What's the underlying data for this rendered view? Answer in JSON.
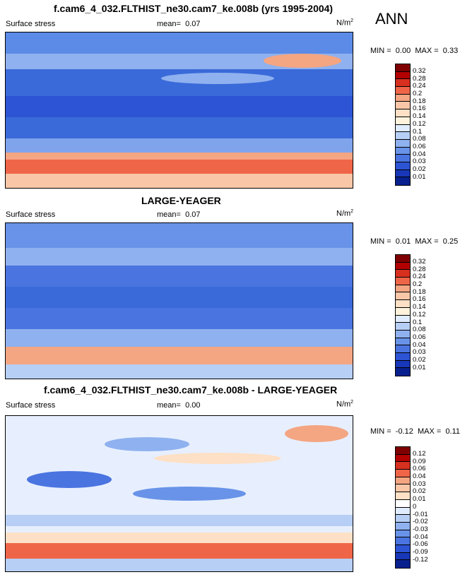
{
  "season": "ANN",
  "panels": [
    {
      "title": "f.cam6_4_032.FLTHIST_ne30.cam7_ke.008b (yrs 1995-2004)",
      "variable": "Surface stress",
      "mean_label": "mean=",
      "mean": "0.07",
      "units_base": "N/m",
      "units_exp": "2",
      "min_label": "MIN =",
      "min": "0.00",
      "max_label": "MAX =",
      "max": "0.33",
      "ticks": [
        "0.32",
        "0.28",
        "0.24",
        "0.2",
        "0.18",
        "0.16",
        "0.14",
        "0.12",
        "0.1",
        "0.08",
        "0.06",
        "0.04",
        "0.03",
        "0.02",
        "0.01"
      ],
      "colors": [
        "#7f0000",
        "#b30000",
        "#d7301f",
        "#ef6548",
        "#f4a582",
        "#f9c7a7",
        "#fde0c5",
        "#fff3dd",
        "#e0ecff",
        "#b7cff5",
        "#8fb1ef",
        "#6893e8",
        "#4a74e0",
        "#2c54d4",
        "#1837b8",
        "#08208e"
      ]
    },
    {
      "title": "LARGE-YEAGER",
      "variable": "Surface stress",
      "mean_label": "mean=",
      "mean": "0.07",
      "units_base": "N/m",
      "units_exp": "2",
      "min_label": "MIN =",
      "min": "0.01",
      "max_label": "MAX =",
      "max": "0.25",
      "ticks": [
        "0.32",
        "0.28",
        "0.24",
        "0.2",
        "0.18",
        "0.16",
        "0.14",
        "0.12",
        "0.1",
        "0.08",
        "0.06",
        "0.04",
        "0.03",
        "0.02",
        "0.01"
      ],
      "colors": [
        "#7f0000",
        "#b30000",
        "#d7301f",
        "#ef6548",
        "#f4a582",
        "#f9c7a7",
        "#fde0c5",
        "#fff3dd",
        "#e0ecff",
        "#b7cff5",
        "#8fb1ef",
        "#6893e8",
        "#4a74e0",
        "#2c54d4",
        "#1837b8",
        "#08208e"
      ]
    },
    {
      "title": "f.cam6_4_032.FLTHIST_ne30.cam7_ke.008b - LARGE-YEAGER",
      "variable": "Surface stress",
      "mean_label": "mean=",
      "mean": "0.00",
      "units_base": "N/m",
      "units_exp": "2",
      "min_label": "MIN =",
      "min": "-0.12",
      "max_label": "MAX =",
      "max": "0.11",
      "ticks": [
        "0.12",
        "0.09",
        "0.06",
        "0.04",
        "0.03",
        "0.02",
        "0.01",
        "0",
        "-0.01",
        "-0.02",
        "-0.03",
        "-0.04",
        "-0.06",
        "-0.09",
        "-0.12"
      ],
      "colors": [
        "#7f0000",
        "#b30000",
        "#d7301f",
        "#ef6548",
        "#f4a582",
        "#f9c7a7",
        "#fde0c5",
        "#ffffff",
        "#e0ecff",
        "#b7cff5",
        "#8fb1ef",
        "#6893e8",
        "#4a74e0",
        "#2c54d4",
        "#1837b8",
        "#08208e"
      ]
    }
  ]
}
